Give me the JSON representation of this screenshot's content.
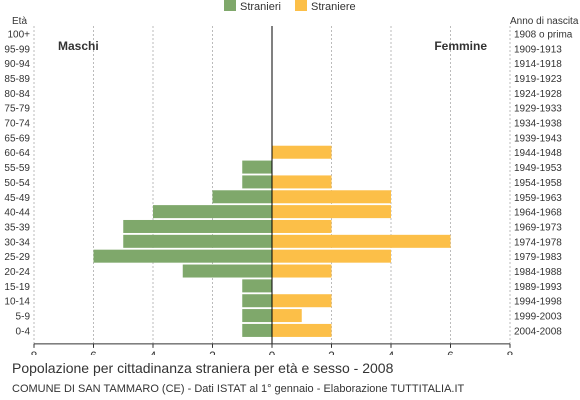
{
  "chart_data": {
    "type": "bar",
    "orientation": "horizontal-population-pyramid",
    "title": "Popolazione per cittadinanza straniera per età e sesso - 2008",
    "source": "COMUNE DI SAN TAMMARO (CE) - Dati ISTAT al 1° gennaio - Elaborazione TUTTITALIA.IT",
    "y_axis_label_left": "Età",
    "y_axis_label_right": "Anno di nascita",
    "side_label_left": "Maschi",
    "side_label_right": "Femmine",
    "age_groups": [
      "100+",
      "95-99",
      "90-94",
      "85-89",
      "80-84",
      "75-79",
      "70-74",
      "65-69",
      "60-64",
      "55-59",
      "50-54",
      "45-49",
      "40-44",
      "35-39",
      "30-34",
      "25-29",
      "20-24",
      "15-19",
      "10-14",
      "5-9",
      "0-4"
    ],
    "birth_years": [
      "1908 o prima",
      "1909-1913",
      "1914-1918",
      "1919-1923",
      "1924-1928",
      "1929-1933",
      "1934-1938",
      "1939-1943",
      "1944-1948",
      "1949-1953",
      "1954-1958",
      "1959-1963",
      "1964-1968",
      "1969-1973",
      "1974-1978",
      "1979-1983",
      "1984-1988",
      "1989-1993",
      "1994-1998",
      "1999-2003",
      "2004-2008"
    ],
    "series": [
      {
        "name": "Stranieri",
        "color": "#7fa86b",
        "side": "left",
        "values": [
          0,
          0,
          0,
          0,
          0,
          0,
          0,
          0,
          0,
          1,
          1,
          2,
          4,
          5,
          5,
          6,
          3,
          1,
          1,
          1,
          1
        ]
      },
      {
        "name": "Straniere",
        "color": "#fcbf48",
        "side": "right",
        "values": [
          0,
          0,
          0,
          0,
          0,
          0,
          0,
          0,
          2,
          0,
          2,
          4,
          4,
          2,
          6,
          4,
          2,
          0,
          2,
          1,
          2
        ]
      }
    ],
    "x_ticks": [
      "8",
      "6",
      "4",
      "2",
      "0",
      "2",
      "4",
      "6",
      "8"
    ],
    "x_range": [
      0,
      8
    ],
    "grid": true,
    "legend_position": "top-center"
  }
}
